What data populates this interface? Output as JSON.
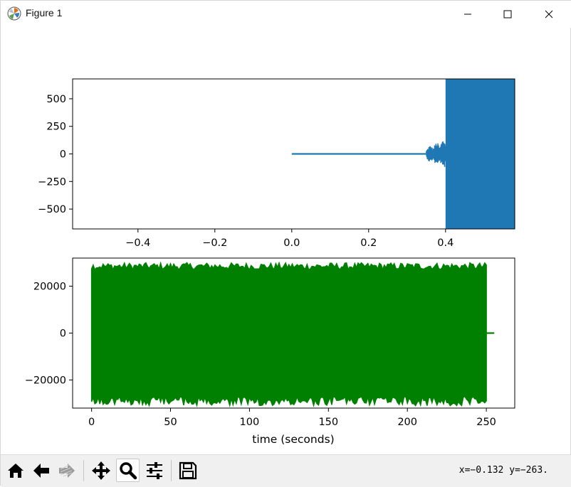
{
  "window": {
    "title": "Figure 1"
  },
  "toolbar": {
    "buttons": [
      {
        "name": "home",
        "icon": "home-icon"
      },
      {
        "name": "back",
        "icon": "arrow-left-icon"
      },
      {
        "name": "forward",
        "icon": "arrow-right-icon"
      },
      {
        "name": "pan",
        "icon": "move-icon"
      },
      {
        "name": "zoom",
        "icon": "magnifier-icon",
        "active": true
      },
      {
        "name": "configure-subplots",
        "icon": "sliders-icon"
      },
      {
        "name": "save",
        "icon": "floppy-disk-icon"
      }
    ],
    "coords": "x=−0.132 y=−263."
  },
  "chart_data": [
    {
      "type": "line",
      "color": "#1f77b4",
      "xlim": [
        -0.57,
        0.58
      ],
      "ylim": [
        -680,
        680
      ],
      "xticks": [
        -0.4,
        -0.2,
        0.0,
        0.2,
        0.4
      ],
      "xtick_labels": [
        "−0.4",
        "−0.2",
        "0.0",
        "0.2",
        "0.4"
      ],
      "yticks": [
        500,
        250,
        0,
        -250,
        -500
      ],
      "ytick_labels": [
        "500",
        "250",
        "0",
        "−250",
        "−500"
      ],
      "xlabel": "",
      "ylabel": "",
      "grid": false,
      "segments": [
        {
          "kind": "flat",
          "x": [
            0.0,
            0.35
          ],
          "y": 0
        },
        {
          "kind": "oscillation",
          "x": [
            0.35,
            0.4
          ],
          "amplitude_start": 60,
          "amplitude_end": 140
        },
        {
          "kind": "saturated",
          "x": [
            0.4,
            0.58
          ],
          "amplitude": 680
        }
      ]
    },
    {
      "type": "line",
      "color": "#008000",
      "xlim": [
        -12,
        268
      ],
      "ylim": [
        -32000,
        32000
      ],
      "xticks": [
        0,
        50,
        100,
        150,
        200,
        250
      ],
      "xtick_labels": [
        "0",
        "50",
        "100",
        "150",
        "200",
        "250"
      ],
      "yticks": [
        20000,
        0,
        -20000
      ],
      "ytick_labels": [
        "20000",
        "0",
        "−20000"
      ],
      "xlabel": "time (seconds)",
      "ylabel": "",
      "grid": false,
      "segments": [
        {
          "kind": "envelope",
          "x": [
            0,
            250
          ],
          "y_max_range": [
            27000,
            30000
          ],
          "y_min_range": [
            -27000,
            -31000
          ]
        },
        {
          "kind": "flat",
          "x": [
            250,
            255
          ],
          "y": 0
        }
      ]
    }
  ]
}
